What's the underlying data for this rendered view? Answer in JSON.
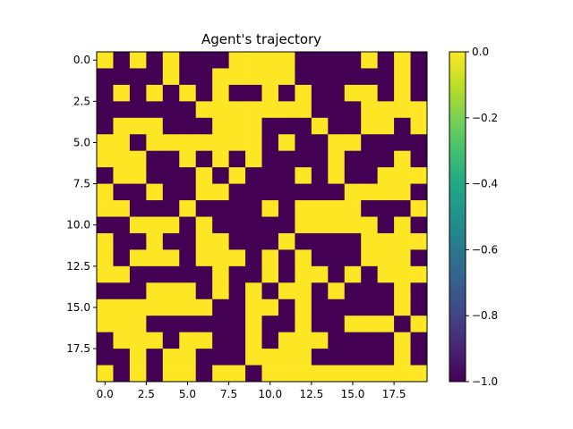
{
  "chart_data": {
    "type": "heatmap",
    "title": "Agent's trajectory",
    "xlabel": "",
    "ylabel": "",
    "x_ticks": [
      "0.0",
      "2.5",
      "5.0",
      "7.5",
      "10.0",
      "12.5",
      "15.0",
      "17.5"
    ],
    "y_ticks": [
      "0.0",
      "2.5",
      "5.0",
      "7.5",
      "10.0",
      "12.5",
      "15.0",
      "17.5"
    ],
    "colorbar": {
      "min": -1.0,
      "max": 0.0,
      "ticks": [
        "0.0",
        "−0.2",
        "−0.4",
        "−0.6",
        "−0.8",
        "−1.0"
      ],
      "colormap": "viridis"
    },
    "low_color": "#440154",
    "high_color": "#fde725",
    "grid": false,
    "rows": 20,
    "cols": 20,
    "values": [
      [
        0,
        -1,
        0,
        -1,
        0,
        -1,
        -1,
        -1,
        0,
        0,
        0,
        0,
        -1,
        -1,
        -1,
        -1,
        0,
        -1,
        0,
        -1
      ],
      [
        -1,
        -1,
        -1,
        -1,
        0,
        -1,
        -1,
        0,
        0,
        0,
        0,
        0,
        -1,
        -1,
        -1,
        -1,
        -1,
        -1,
        0,
        -1
      ],
      [
        -1,
        0,
        -1,
        0,
        -1,
        0,
        -1,
        0,
        -1,
        -1,
        0,
        -1,
        0,
        -1,
        -1,
        0,
        0,
        -1,
        0,
        -1
      ],
      [
        -1,
        -1,
        -1,
        -1,
        -1,
        -1,
        0,
        0,
        0,
        0,
        0,
        0,
        0,
        -1,
        -1,
        -1,
        0,
        0,
        0,
        0
      ],
      [
        -1,
        0,
        0,
        0,
        -1,
        -1,
        -1,
        0,
        0,
        0,
        -1,
        -1,
        -1,
        0,
        -1,
        -1,
        0,
        0,
        -1,
        0
      ],
      [
        0,
        0,
        -1,
        0,
        0,
        0,
        0,
        0,
        0,
        0,
        -1,
        0,
        -1,
        -1,
        0,
        0,
        -1,
        -1,
        -1,
        -1
      ],
      [
        0,
        0,
        0,
        -1,
        -1,
        0,
        -1,
        0,
        -1,
        0,
        -1,
        -1,
        -1,
        -1,
        0,
        -1,
        -1,
        -1,
        0,
        -1
      ],
      [
        -1,
        0,
        0,
        -1,
        -1,
        -1,
        0,
        -1,
        0,
        -1,
        -1,
        -1,
        0,
        -1,
        0,
        -1,
        -1,
        0,
        0,
        0
      ],
      [
        0,
        -1,
        -1,
        0,
        -1,
        -1,
        0,
        0,
        -1,
        -1,
        -1,
        -1,
        -1,
        -1,
        -1,
        0,
        0,
        0,
        0,
        -1
      ],
      [
        0,
        0,
        -1,
        -1,
        -1,
        0,
        -1,
        -1,
        -1,
        -1,
        0,
        -1,
        0,
        0,
        0,
        0,
        -1,
        -1,
        -1,
        0
      ],
      [
        -1,
        -1,
        0,
        0,
        0,
        -1,
        0,
        -1,
        -1,
        -1,
        -1,
        -1,
        0,
        0,
        0,
        0,
        0,
        -1,
        0,
        -1
      ],
      [
        0,
        -1,
        -1,
        0,
        -1,
        -1,
        0,
        0,
        -1,
        -1,
        -1,
        0,
        -1,
        -1,
        -1,
        -1,
        0,
        0,
        0,
        0
      ],
      [
        0,
        -1,
        0,
        0,
        0,
        -1,
        0,
        0,
        0,
        -1,
        0,
        -1,
        0,
        -1,
        -1,
        -1,
        0,
        0,
        0,
        -1
      ],
      [
        0,
        0,
        -1,
        -1,
        -1,
        -1,
        -1,
        0,
        -1,
        -1,
        0,
        -1,
        0,
        0,
        -1,
        0,
        -1,
        0,
        0,
        0
      ],
      [
        -1,
        -1,
        -1,
        0,
        0,
        0,
        -1,
        0,
        -1,
        0,
        -1,
        0,
        0,
        -1,
        0,
        -1,
        -1,
        -1,
        0,
        -1
      ],
      [
        0,
        0,
        0,
        0,
        0,
        0,
        0,
        -1,
        -1,
        0,
        0,
        -1,
        0,
        -1,
        -1,
        -1,
        -1,
        -1,
        0,
        -1
      ],
      [
        0,
        0,
        0,
        -1,
        -1,
        -1,
        -1,
        -1,
        -1,
        0,
        -1,
        -1,
        0,
        -1,
        -1,
        0,
        0,
        0,
        -1,
        0
      ],
      [
        -1,
        0,
        0,
        0,
        -1,
        0,
        0,
        -1,
        -1,
        0,
        -1,
        0,
        0,
        0,
        -1,
        -1,
        -1,
        -1,
        0,
        -1
      ],
      [
        -1,
        -1,
        0,
        -1,
        0,
        0,
        -1,
        -1,
        -1,
        0,
        0,
        0,
        0,
        -1,
        -1,
        -1,
        -1,
        -1,
        0,
        -1
      ],
      [
        0,
        -1,
        0,
        -1,
        0,
        0,
        -1,
        0,
        0,
        -1,
        0,
        0,
        0,
        0,
        0,
        0,
        0,
        0,
        0,
        0
      ]
    ]
  }
}
